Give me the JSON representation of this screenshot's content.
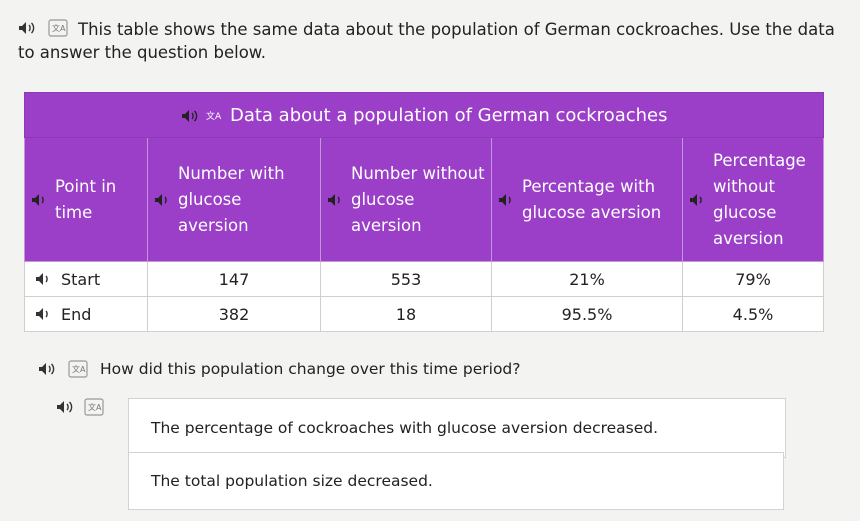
{
  "intro": {
    "text": "This table shows the same data about the population of German cockroaches. Use the data to answer the question below."
  },
  "table": {
    "caption": "Data about a population of German cockroaches",
    "headers": [
      "Point in time",
      "Number with glucose aversion",
      "Number without glucose aversion",
      "Percentage with glucose aversion",
      "Percentage without glucose aversion"
    ],
    "rows": [
      {
        "label": "Start",
        "cells": [
          "147",
          "553",
          "21%",
          "79%"
        ]
      },
      {
        "label": "End",
        "cells": [
          "382",
          "18",
          "95.5%",
          "4.5%"
        ]
      }
    ]
  },
  "question": {
    "text": "How did this population change over this time period?"
  },
  "choices": [
    {
      "label": "The percentage of cockroaches with glucose aversion decreased."
    },
    {
      "label": "The total population size decreased."
    }
  ],
  "colors": {
    "header_purple": "#9b3fc8",
    "background": "#f3f3f1"
  },
  "icons": {
    "speaker": "speaker-icon",
    "translate": "translate-icon"
  }
}
